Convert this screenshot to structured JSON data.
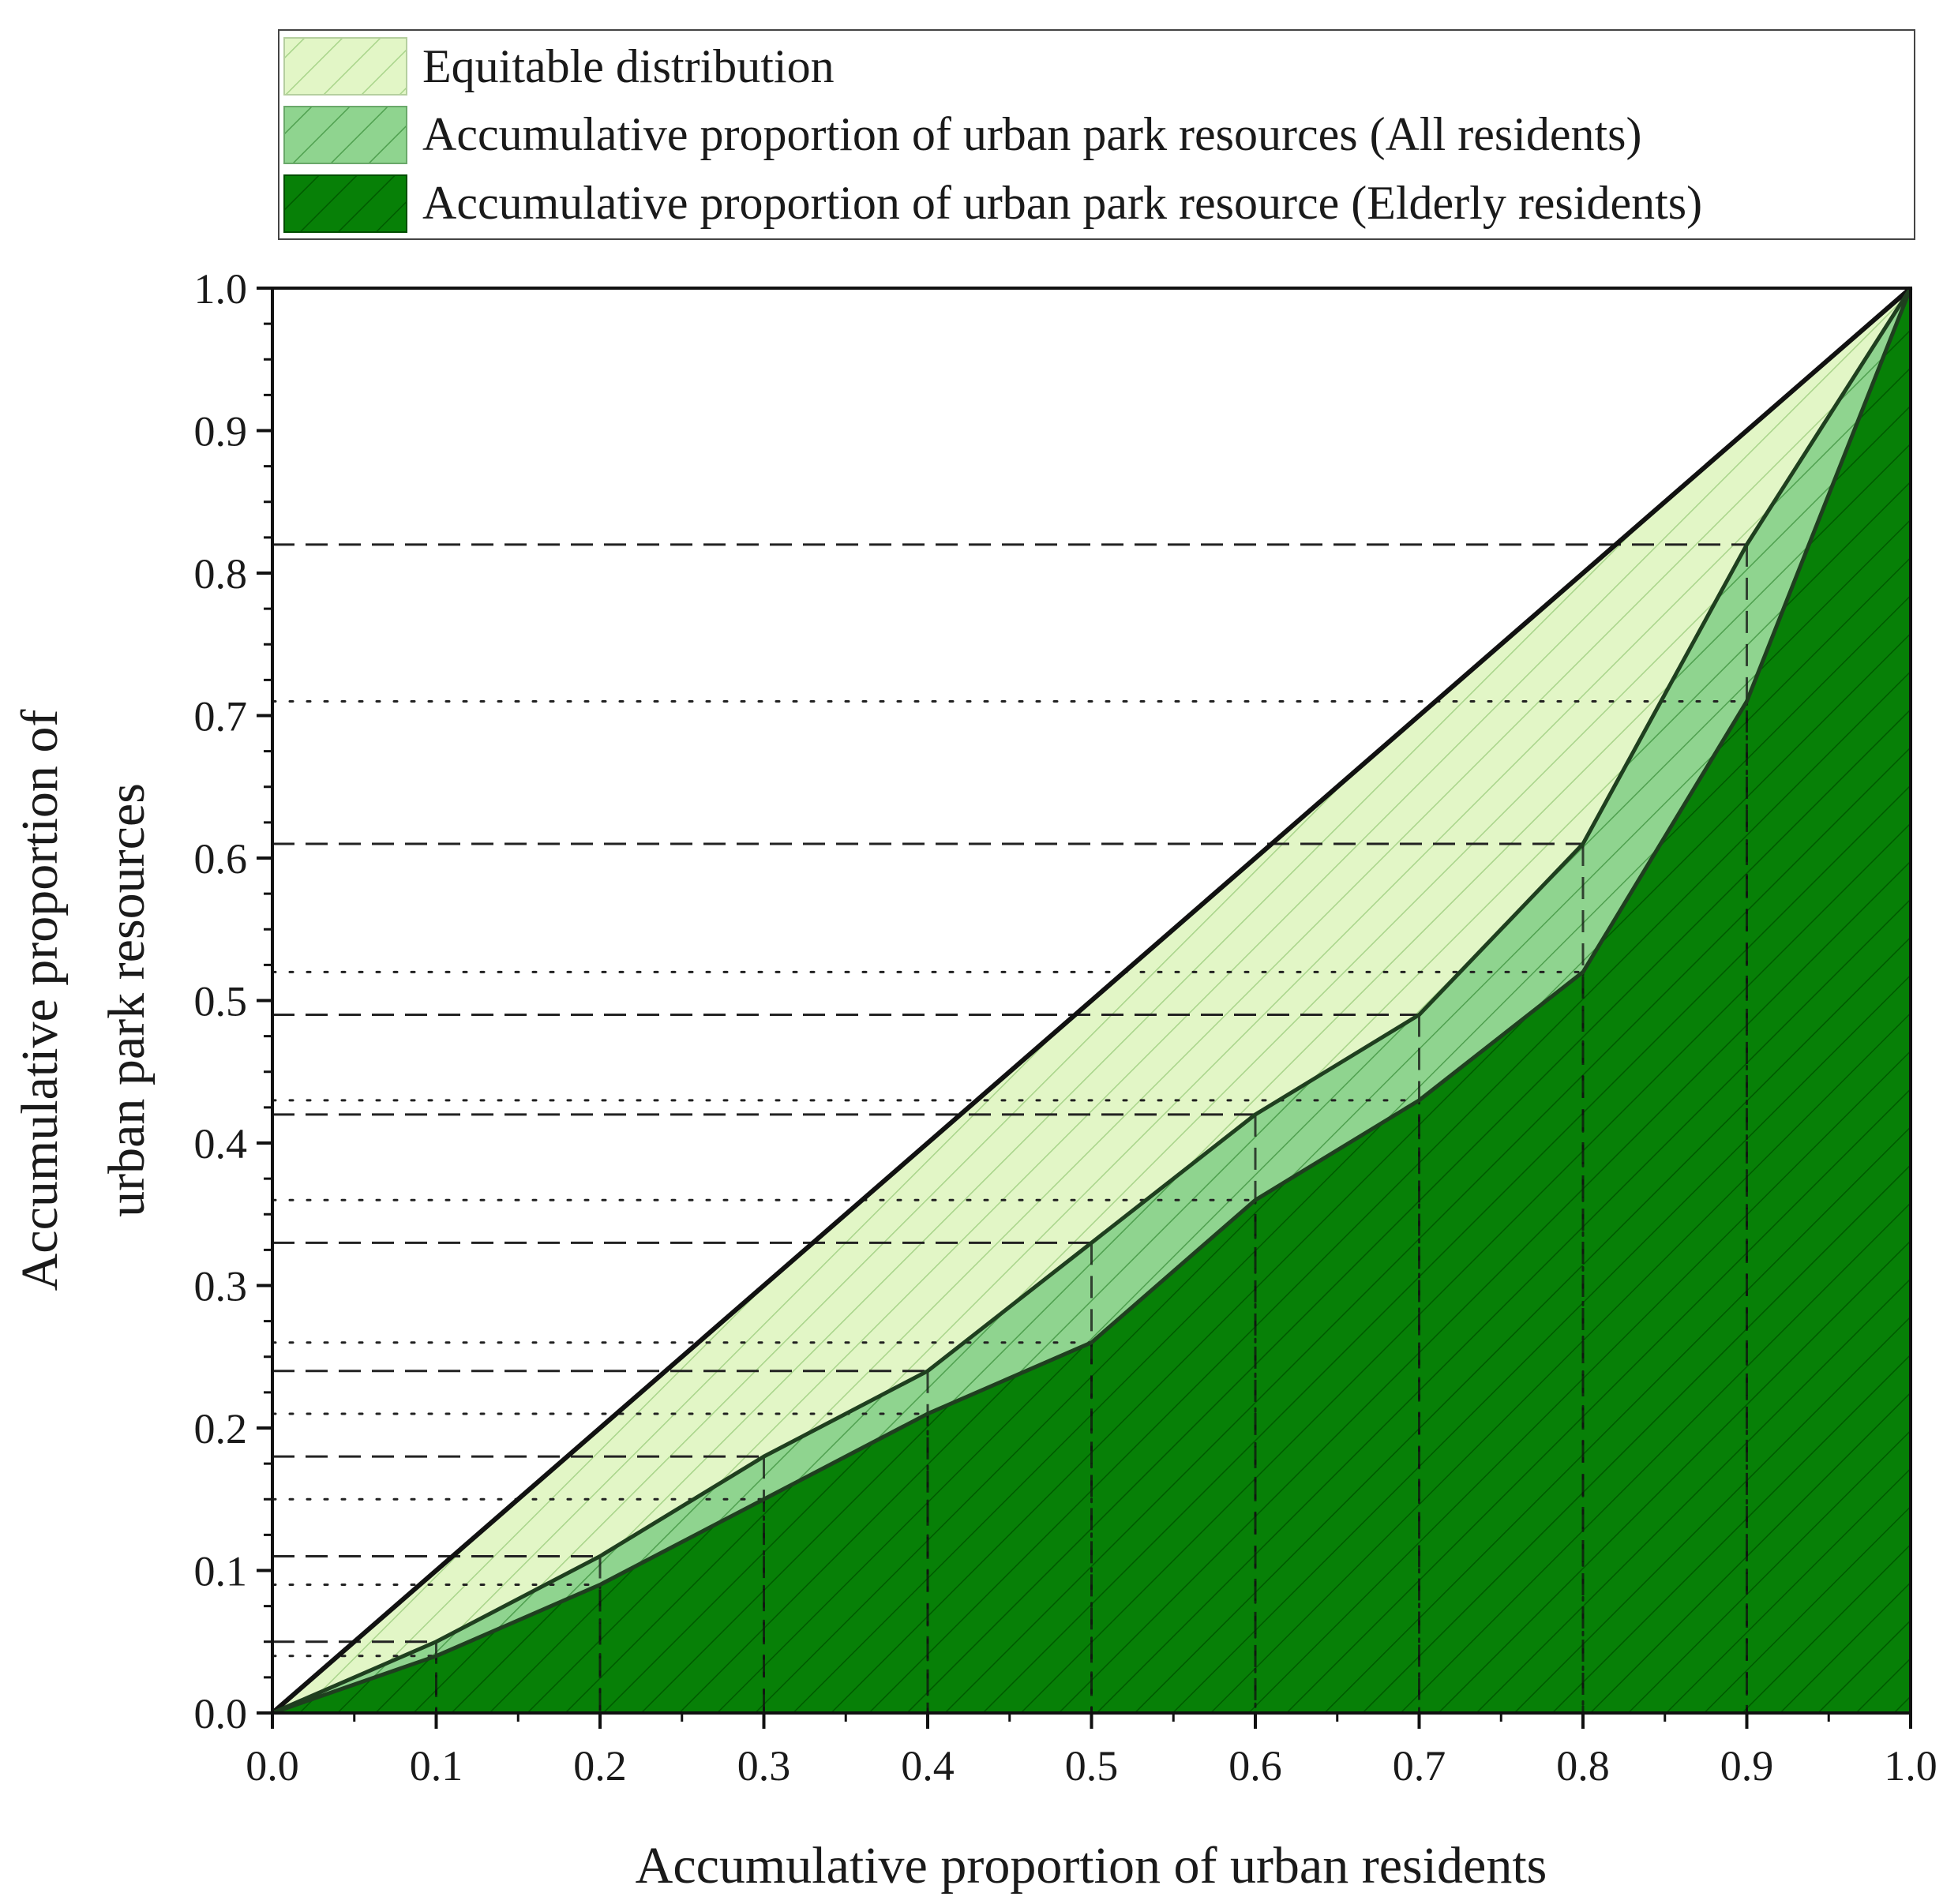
{
  "chart_data": {
    "type": "area",
    "title": "",
    "xlabel": "Accumulative proportion of urban residents",
    "ylabel_lines": [
      "Accumulative proportion of",
      "urban park resources"
    ],
    "xlim": [
      0.0,
      1.0
    ],
    "ylim": [
      0.0,
      1.0
    ],
    "x_ticks": [
      "0.0",
      "0.1",
      "0.2",
      "0.3",
      "0.4",
      "0.5",
      "0.6",
      "0.7",
      "0.8",
      "0.9",
      "1.0"
    ],
    "y_ticks": [
      "0.0",
      "0.1",
      "0.2",
      "0.3",
      "0.4",
      "0.5",
      "0.6",
      "0.7",
      "0.8",
      "0.9",
      "1.0"
    ],
    "x": [
      0.0,
      0.1,
      0.2,
      0.3,
      0.4,
      0.5,
      0.6,
      0.7,
      0.8,
      0.9,
      1.0
    ],
    "series": [
      {
        "name": "Equitable distribution",
        "values": [
          0.0,
          0.1,
          0.2,
          0.3,
          0.4,
          0.5,
          0.6,
          0.7,
          0.8,
          0.9,
          1.0
        ],
        "color": "#e2f6c6",
        "hatch": "#a8d48a",
        "reference_lines": "none"
      },
      {
        "name": "Accumulative proportion of urban park resources (All residents)",
        "values": [
          0.0,
          0.05,
          0.11,
          0.18,
          0.24,
          0.33,
          0.42,
          0.49,
          0.61,
          0.82,
          1.0
        ],
        "color": "#8fd48f",
        "hatch": "#4fa04f",
        "reference_lines": "dashed"
      },
      {
        "name": "Accumulative proportion of urban park resource (Elderly residents)",
        "values": [
          0.0,
          0.04,
          0.09,
          0.15,
          0.21,
          0.26,
          0.36,
          0.43,
          0.52,
          0.71,
          1.0
        ],
        "color": "#078007",
        "hatch": "#005a00",
        "reference_lines": "dotted"
      }
    ],
    "legend_position": "top",
    "grid": false
  }
}
